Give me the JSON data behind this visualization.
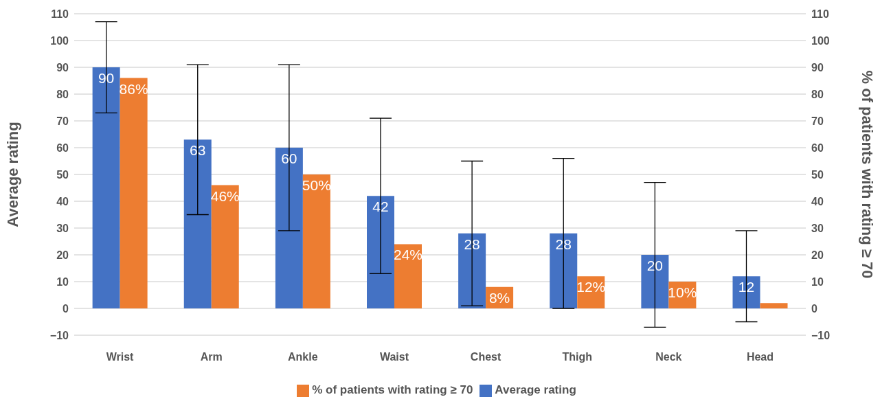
{
  "chart_data": {
    "type": "bar",
    "categories": [
      "Wrist",
      "Arm",
      "Ankle",
      "Waist",
      "Chest",
      "Thigh",
      "Neck",
      "Head"
    ],
    "series": [
      {
        "name": "Average rating",
        "color": "#4472c4",
        "values": [
          90,
          63,
          60,
          42,
          28,
          28,
          20,
          12
        ],
        "errors": [
          [
            73,
            107
          ],
          [
            35,
            91
          ],
          [
            29,
            91
          ],
          [
            13,
            71
          ],
          [
            1,
            55
          ],
          [
            0,
            56
          ],
          [
            -7,
            47
          ],
          [
            -5,
            29
          ]
        ],
        "value_labels": [
          "90",
          "63",
          "60",
          "42",
          "28",
          "28",
          "20",
          "12"
        ]
      },
      {
        "name": "% of patients with rating ≥ 70",
        "color": "#ed7d31",
        "axis": "y2",
        "values": [
          86,
          46,
          50,
          24,
          8,
          12,
          10,
          2
        ],
        "value_labels": [
          "86%",
          "46%",
          "50%",
          "24%",
          "8%",
          "12%",
          "10%",
          null
        ]
      }
    ],
    "ylabel": "Average rating",
    "y2label": "% of patients with rating ≥ 70",
    "ylim": [
      -10,
      110
    ],
    "yticks": [
      {
        "value": -10,
        "label": "−10"
      },
      0,
      10,
      20,
      30,
      40,
      50,
      60,
      70,
      80,
      90,
      100,
      110
    ],
    "y2lim": [
      -10,
      110
    ],
    "y2ticks": [
      {
        "value": -10,
        "label": "−10"
      },
      0,
      10,
      20,
      30,
      40,
      50,
      60,
      70,
      80,
      90,
      100,
      110
    ],
    "grid": "y",
    "legend": "bottom"
  }
}
